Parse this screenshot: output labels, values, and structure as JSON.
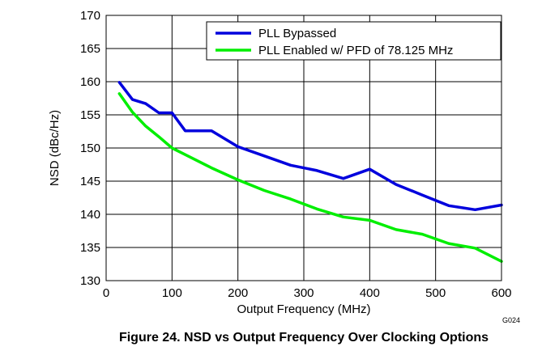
{
  "chart_data": {
    "type": "line",
    "title": "",
    "caption": "Figure 24. NSD vs Output Frequency Over Clocking Options",
    "xlabel": "Output Frequency (MHz)",
    "ylabel": "NSD (dBc/Hz)",
    "xlim": [
      0,
      600
    ],
    "ylim": [
      130,
      170
    ],
    "xticks": [
      "0",
      "100",
      "200",
      "300",
      "400",
      "500",
      "600"
    ],
    "yticks": [
      "130",
      "135",
      "140",
      "145",
      "150",
      "155",
      "160",
      "165",
      "170"
    ],
    "grid": true,
    "legend_position": "top-right",
    "figure_code": "G024",
    "series": [
      {
        "name": "PLL Bypassed",
        "color": "#0000dd",
        "x": [
          20,
          40,
          60,
          80,
          100,
          120,
          140,
          160,
          200,
          240,
          280,
          320,
          360,
          400,
          440,
          480,
          520,
          560,
          600
        ],
        "y": [
          159.9,
          157.3,
          156.7,
          155.3,
          155.3,
          152.6,
          152.6,
          152.6,
          150.2,
          148.8,
          147.4,
          146.6,
          145.4,
          146.8,
          144.5,
          142.9,
          141.3,
          140.7,
          141.4
        ]
      },
      {
        "name": "PLL Enabled w/ PFD of 78.125 MHz",
        "color": "#00ee00",
        "x": [
          20,
          40,
          60,
          80,
          100,
          120,
          160,
          200,
          240,
          280,
          320,
          360,
          400,
          440,
          480,
          520,
          560,
          600
        ],
        "y": [
          158.2,
          155.4,
          153.3,
          151.7,
          150.0,
          149.0,
          147.0,
          145.2,
          143.6,
          142.3,
          140.8,
          139.6,
          139.1,
          137.7,
          137.0,
          135.6,
          134.9,
          132.9
        ]
      }
    ]
  }
}
